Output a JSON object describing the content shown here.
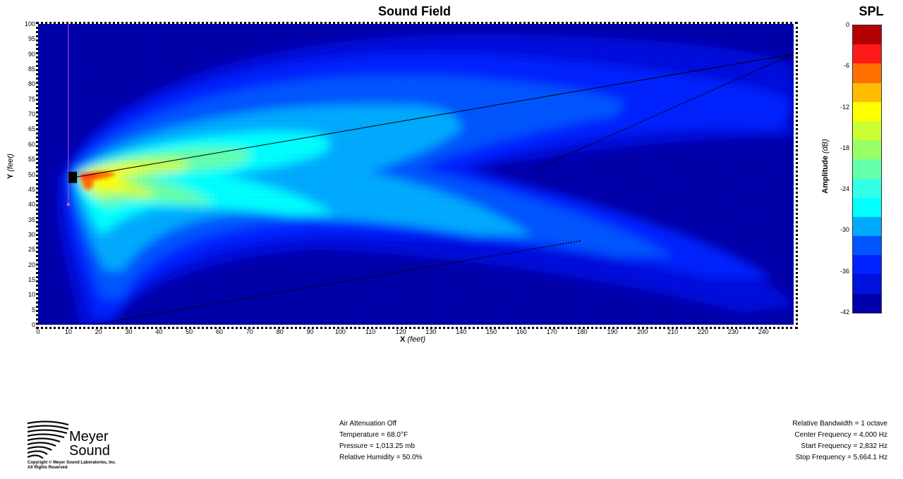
{
  "plot": {
    "title": "Sound Field",
    "x_axis_label": "X",
    "x_axis_unit": "(feet)",
    "y_axis_label": "Y",
    "y_axis_unit": "(feet)"
  },
  "legend": {
    "title": "SPL",
    "axis_label": "Amplitude",
    "axis_unit": "(dB)",
    "tick_labels": [
      "0",
      "-6",
      "-12",
      "-18",
      "-24",
      "-30",
      "-36",
      "-42"
    ],
    "color_bands": [
      "#b30000",
      "#ff1a1a",
      "#ff7000",
      "#ffbb00",
      "#ffff00",
      "#ccff33",
      "#99ff66",
      "#66ffaa",
      "#33ffe6",
      "#00ffff",
      "#00aaff",
      "#0055ff",
      "#0022ff",
      "#0011dd",
      "#0000aa"
    ]
  },
  "chart_data": {
    "type": "heatmap",
    "title": "Sound Field",
    "xlabel": "X (feet)",
    "ylabel": "Y (feet)",
    "xlim": [
      0,
      250
    ],
    "ylim": [
      0,
      100
    ],
    "x_ticks": [
      0,
      10,
      20,
      30,
      40,
      50,
      60,
      70,
      80,
      90,
      100,
      110,
      120,
      130,
      140,
      150,
      160,
      170,
      180,
      190,
      200,
      210,
      220,
      230,
      240
    ],
    "y_ticks": [
      0,
      5,
      10,
      15,
      20,
      25,
      30,
      35,
      40,
      45,
      50,
      55,
      60,
      65,
      70,
      75,
      80,
      85,
      90,
      95,
      100
    ],
    "colorbar_range_db": [
      -42,
      0
    ],
    "source_position": [
      11,
      49
    ],
    "aim_lines": [
      {
        "from": [
          12,
          49
        ],
        "to": [
          250,
          90
        ]
      },
      {
        "from": [
          18,
          0
        ],
        "to": [
          180,
          28
        ]
      },
      {
        "from": [
          165,
          52
        ],
        "to": [
          250,
          90
        ]
      }
    ],
    "reference_line_x": 10,
    "background_color": "#0000aa"
  },
  "footer": {
    "air_attenuation": "Air Attenuation Off",
    "temperature": "Temperature = 68.0°F",
    "pressure": "Pressure = 1,013.25  mb",
    "humidity": "Relative Humidity = 50.0%",
    "relative_bandwidth": "Relative Bandwidth = 1 octave",
    "center_frequency": "Center Frequency = 4,000 Hz",
    "start_frequency": "Start Frequency = 2,832 Hz",
    "stop_frequency": "Stop Frequency = 5,664.1 Hz"
  },
  "logo": {
    "line1": "Meyer",
    "line2": "Sound",
    "copyright": "Copyright © Meyer Sound Laboratories, Inc.",
    "rights": "All Rights Reserved"
  }
}
